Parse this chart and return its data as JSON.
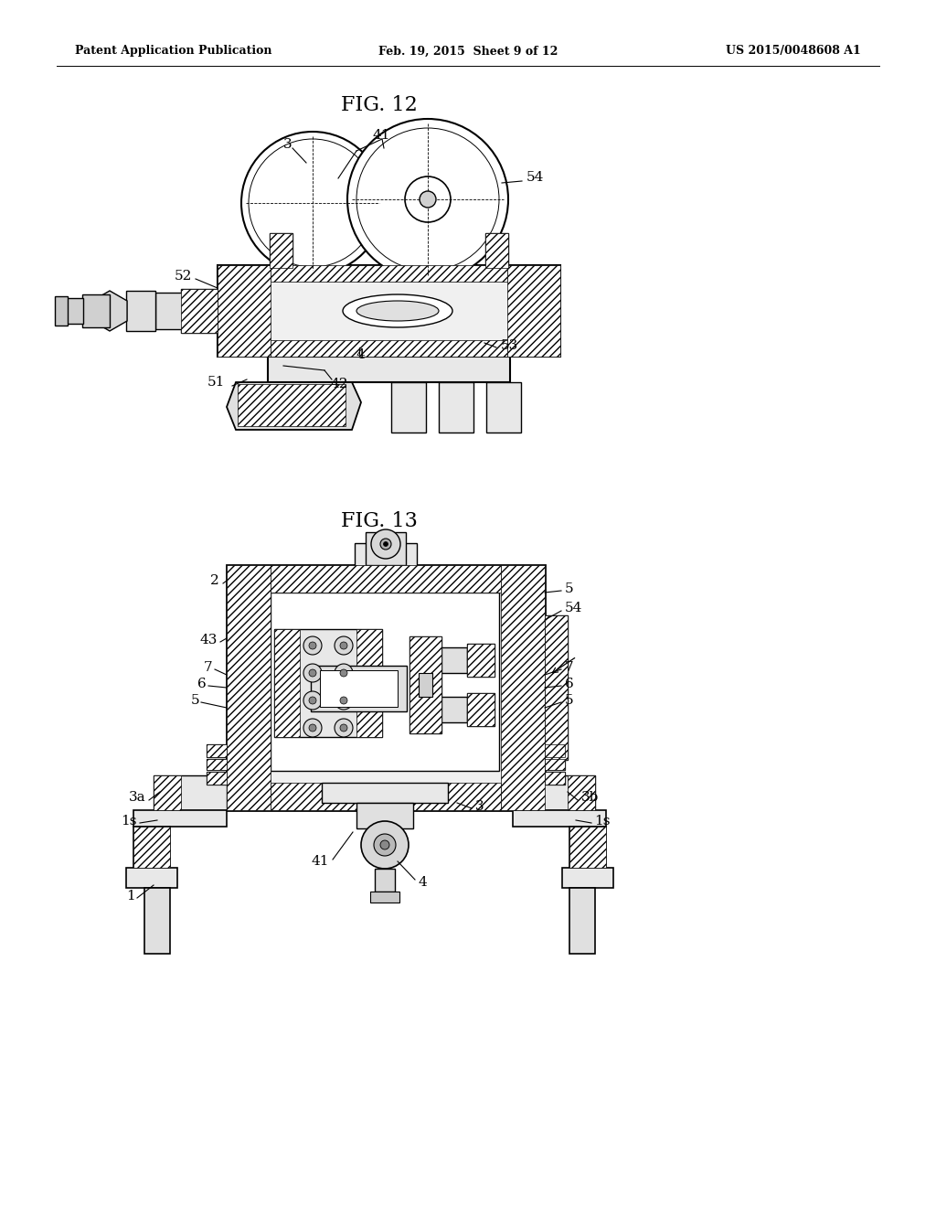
{
  "bg_color": "#ffffff",
  "fig_width": 10.24,
  "fig_height": 13.2,
  "header_left": "Patent Application Publication",
  "header_center": "Feb. 19, 2015  Sheet 9 of 12",
  "header_right": "US 2015/0048608 A1",
  "fig12_title": "FIG. 12",
  "fig13_title": "FIG. 13",
  "text_color": "#000000",
  "line_color": "#000000"
}
